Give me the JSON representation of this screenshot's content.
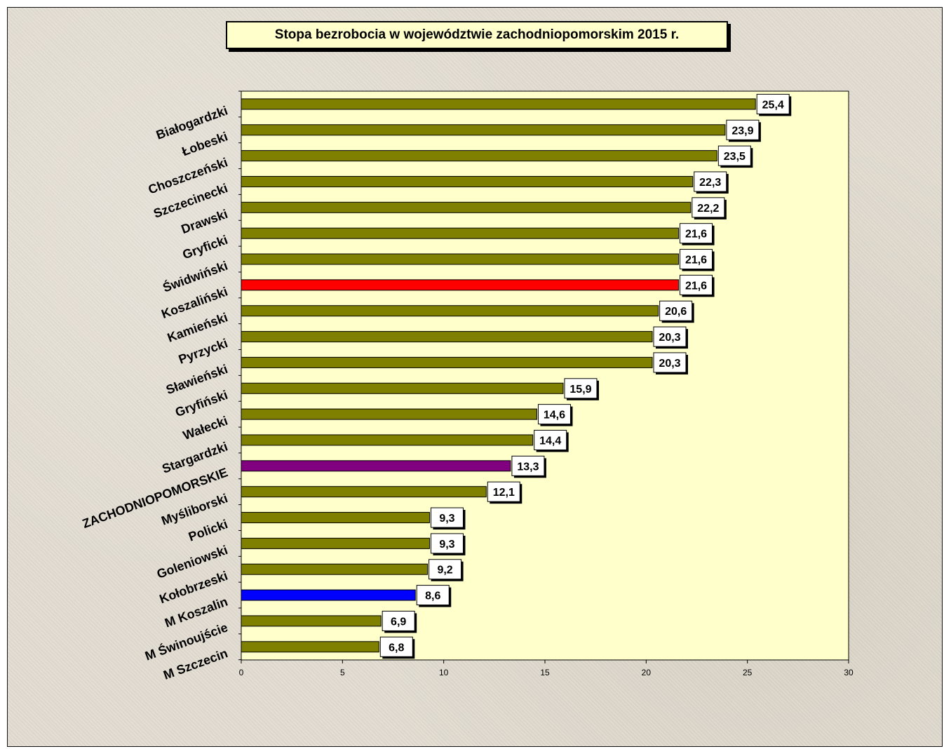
{
  "chart_data": {
    "type": "bar",
    "orientation": "horizontal",
    "title": "Stopa bezrobocia w województwie zachodniopomorskim 2015 r.",
    "categories": [
      "Białogardzki",
      "Łobeski",
      "Choszczeński",
      "Szczecinecki",
      "Drawski",
      "Gryficki",
      "Świdwiński",
      "Koszaliński",
      "Kamieński",
      "Pyrzycki",
      "Sławieński",
      "Gryfiński",
      "Wałecki",
      "Stargardzki",
      "ZACHODNIOPOMORSKIE",
      "Myśliborski",
      "Policki",
      "Goleniowski",
      "Kołobrzeski",
      "M Koszalin",
      "M Świnoujście",
      "M Szczecin"
    ],
    "values": [
      25.4,
      23.9,
      23.5,
      22.3,
      22.2,
      21.6,
      21.6,
      21.6,
      20.6,
      20.3,
      20.3,
      15.9,
      14.6,
      14.4,
      13.3,
      12.1,
      9.3,
      9.3,
      9.2,
      8.6,
      6.9,
      6.8
    ],
    "value_labels": [
      "25,4",
      "23,9",
      "23,5",
      "22,3",
      "22,2",
      "21,6",
      "21,6",
      "21,6",
      "20,6",
      "20,3",
      "20,3",
      "15,9",
      "14,6",
      "14,4",
      "13,3",
      "12,1",
      "9,3",
      "9,3",
      "9,2",
      "8,6",
      "6,9",
      "6,8"
    ],
    "bar_colors": [
      "#808000",
      "#808000",
      "#808000",
      "#808000",
      "#808000",
      "#808000",
      "#808000",
      "#ff0000",
      "#808000",
      "#808000",
      "#808000",
      "#808000",
      "#808000",
      "#808000",
      "#800080",
      "#808000",
      "#808000",
      "#808000",
      "#808000",
      "#0000ff",
      "#808000",
      "#808000"
    ],
    "xlim": [
      0,
      30
    ],
    "ticks": [
      0,
      5,
      10,
      15,
      20,
      25,
      30
    ],
    "tick_labels": [
      "0",
      "5",
      "10",
      "15",
      "20",
      "25",
      "30"
    ],
    "grid": false,
    "plot_background": "#ffffcc",
    "default_bar_color": "#808000"
  }
}
